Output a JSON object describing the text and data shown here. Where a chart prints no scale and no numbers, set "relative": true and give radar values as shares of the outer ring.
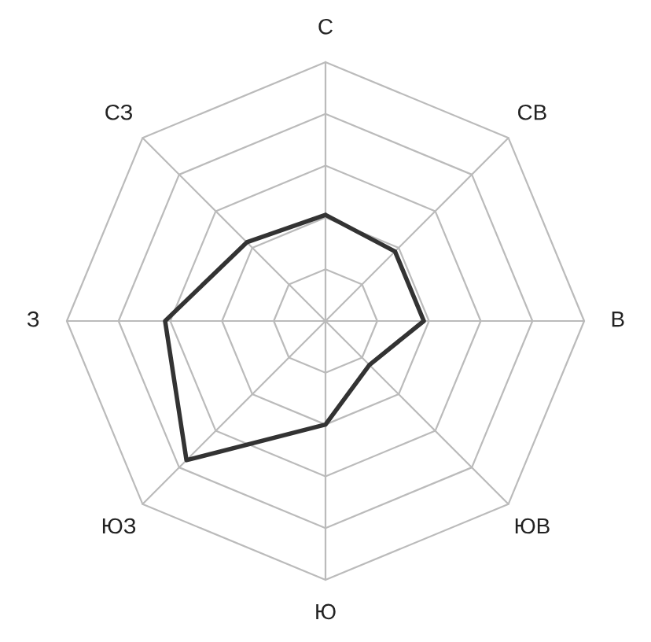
{
  "chart_data": {
    "type": "radar",
    "relative": true,
    "grid": true,
    "categories": [
      "С",
      "СВ",
      "В",
      "ЮВ",
      "Ю",
      "ЮЗ",
      "З",
      "СЗ"
    ],
    "series": [
      {
        "color": "#333333",
        "values": [
          0.41,
          0.38,
          0.38,
          0.24,
          0.4,
          0.76,
          0.62,
          0.43
        ]
      }
    ]
  }
}
